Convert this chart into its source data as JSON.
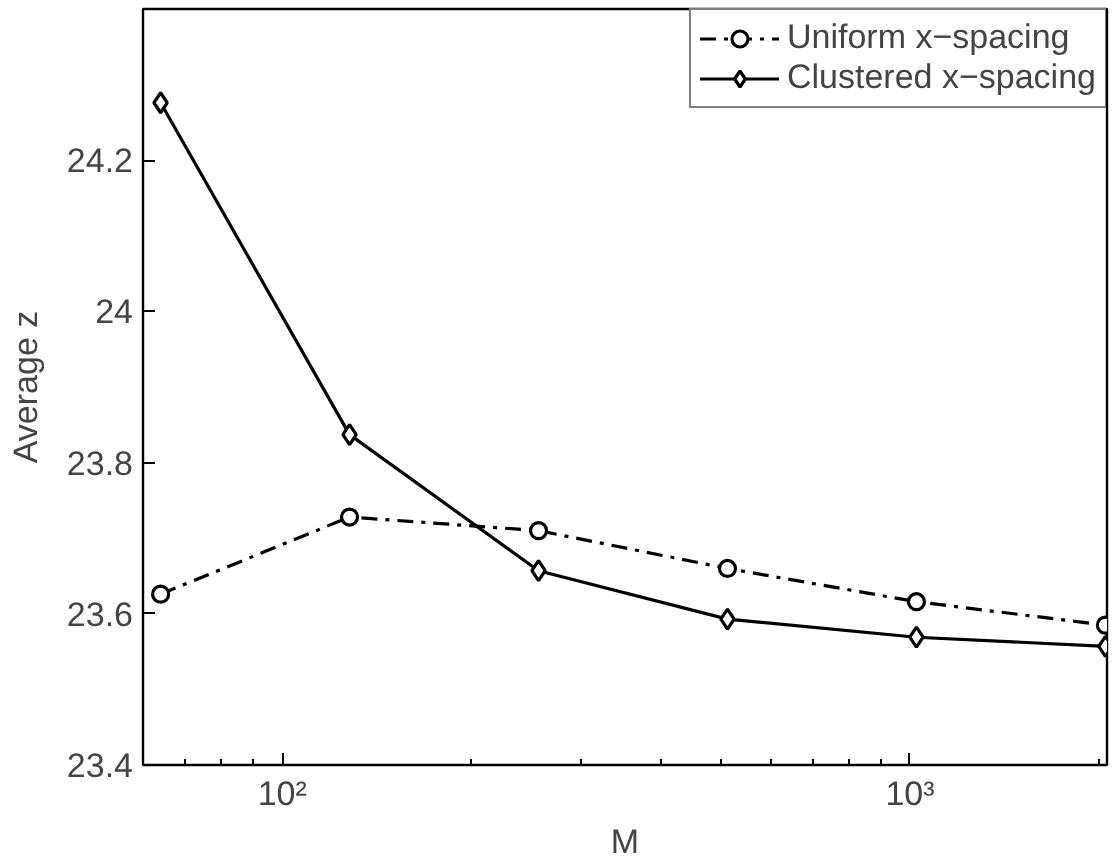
{
  "chart_data": {
    "type": "line",
    "xlabel": "M",
    "ylabel": "Average z",
    "x": [
      64,
      128,
      256,
      512,
      1024,
      2048
    ],
    "series": [
      {
        "name": "Uniform x−spacing",
        "color": "#000000",
        "values": [
          23.626,
          23.728,
          23.71,
          23.66,
          23.616,
          23.585
        ],
        "marker": "circle",
        "line_style": "dashdot"
      },
      {
        "name": "Clustered x−spacing",
        "color": "#000000",
        "values": [
          24.276,
          23.837,
          23.657,
          23.593,
          23.569,
          23.557
        ],
        "marker": "diamond",
        "line_style": "solid"
      }
    ],
    "log": "x",
    "xlim": [
      60,
      2060
    ],
    "ylim": [
      23.4,
      24.4
    ],
    "xticks": [
      {
        "value": 100,
        "label": "10²"
      },
      {
        "value": 1000,
        "label": "10³"
      }
    ],
    "yticks": [
      23.4,
      23.6,
      23.8,
      24,
      24.2
    ],
    "grid": false,
    "legend": "top right"
  }
}
